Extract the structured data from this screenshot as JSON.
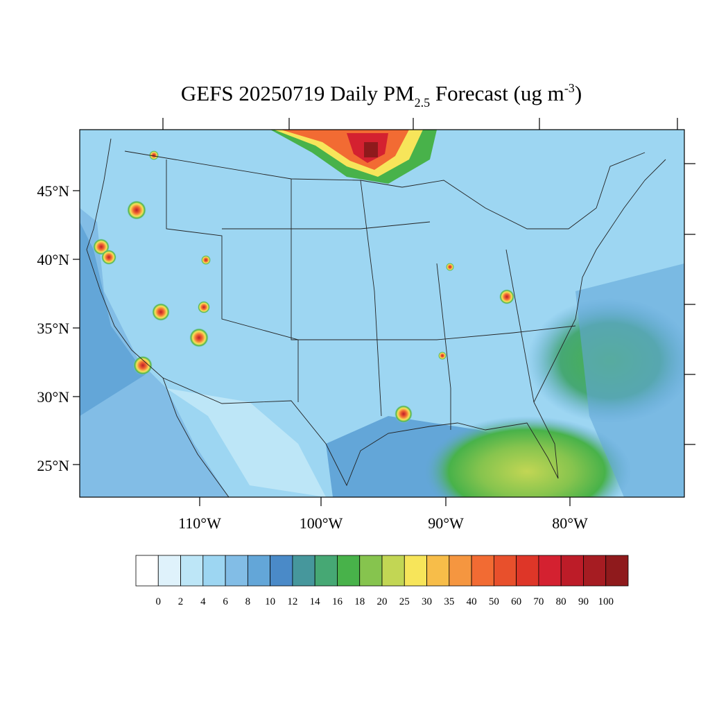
{
  "title": {
    "main": "GEFS 20250719 Daily PM",
    "subscript": "2.5",
    "rest": " Forecast (ug m",
    "superscript": "-3",
    "close": ")"
  },
  "map": {
    "lat_labels": [
      "45°N",
      "40°N",
      "35°N",
      "30°N",
      "25°N"
    ],
    "lon_labels": [
      "110°W",
      "100°W",
      "90°W",
      "80°W"
    ]
  },
  "colorbar": {
    "colors": [
      "#ffffff",
      "#dff2fb",
      "#bde6f7",
      "#9dd6f2",
      "#82bde6",
      "#63a6d8",
      "#4a8ac8",
      "#46979c",
      "#46a874",
      "#48b24a",
      "#86c44e",
      "#c2d654",
      "#f7e55a",
      "#f7bd49",
      "#f59640",
      "#f26b33",
      "#e8502c",
      "#de3628",
      "#d42130",
      "#bd1c28",
      "#a61c22",
      "#8f1a1c"
    ],
    "labels": [
      0,
      2,
      4,
      6,
      8,
      10,
      12,
      14,
      16,
      18,
      20,
      25,
      30,
      35,
      40,
      50,
      60,
      70,
      80,
      90,
      100
    ]
  }
}
